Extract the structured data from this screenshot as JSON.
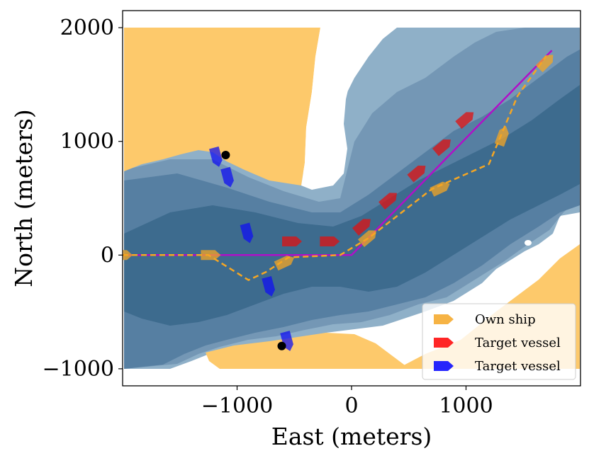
{
  "chart_data": {
    "type": "scatter",
    "xlabel": "East (meters)",
    "ylabel": "North (meters)",
    "xlim": [
      -2000,
      2000
    ],
    "ylim": [
      -1150,
      2150
    ],
    "x_ticks": [
      -1000,
      0,
      1000
    ],
    "y_ticks": [
      -1000,
      0,
      1000,
      2000
    ],
    "x_tick_labels": [
      "−1000",
      "0",
      "1000"
    ],
    "y_tick_labels": [
      "−1000",
      "0",
      "1000",
      "2000"
    ],
    "legend_position": "lower-right",
    "legend": [
      {
        "label": "Own ship",
        "color": "#f5a623"
      },
      {
        "label": "Target vessel",
        "color": "#ff0000"
      },
      {
        "label": "Target vessel",
        "color": "#0000ff"
      }
    ],
    "colors": {
      "land": "#fdc96b",
      "deep_water": "#3d6b8e",
      "mid_water": "#567fa2",
      "shallow_water": "#7497b5",
      "shoal_water": "#8fb0c8",
      "planned_path": "#b010c8",
      "own_ship": "#f5a623",
      "target_red": "#e01010",
      "target_blue": "#1010f0"
    },
    "series": [
      {
        "name": "Own ship",
        "style": "dashed",
        "points": [
          [
            -2000,
            0
          ],
          [
            -1250,
            0
          ],
          [
            -900,
            -220
          ],
          [
            -750,
            -150
          ],
          [
            -550,
            -20
          ],
          [
            -100,
            0
          ],
          [
            150,
            150
          ],
          [
            700,
            580
          ],
          [
            1200,
            800
          ],
          [
            1450,
            1400
          ],
          [
            1700,
            1750
          ]
        ]
      },
      {
        "name": "Planned path",
        "style": "solid",
        "points": [
          [
            -2000,
            0
          ],
          [
            0,
            0
          ],
          [
            1750,
            1800
          ]
        ]
      }
    ],
    "own_ship_markers": [
      {
        "x": -2000,
        "y": 0,
        "heading": 90
      },
      {
        "x": -1230,
        "y": 0,
        "heading": 90
      },
      {
        "x": -580,
        "y": -60,
        "heading": 65
      },
      {
        "x": 150,
        "y": 160,
        "heading": 50
      },
      {
        "x": 780,
        "y": 590,
        "heading": 65
      },
      {
        "x": 1320,
        "y": 1050,
        "heading": 20
      },
      {
        "x": 1700,
        "y": 1700,
        "heading": 45
      }
    ],
    "red_target_markers": [
      {
        "x": 1000,
        "y": 1200,
        "heading": 50
      },
      {
        "x": 800,
        "y": 960,
        "heading": 50
      },
      {
        "x": 580,
        "y": 730,
        "heading": 50
      },
      {
        "x": 330,
        "y": 490,
        "heading": 50
      },
      {
        "x": 100,
        "y": 260,
        "heading": 50
      },
      {
        "x": -190,
        "y": 120,
        "heading": 90
      },
      {
        "x": -520,
        "y": 120,
        "heading": 90
      }
    ],
    "blue_target_markers": [
      {
        "x": -1180,
        "y": 860,
        "heading": 165
      },
      {
        "x": -1080,
        "y": 680,
        "heading": 165
      },
      {
        "x": -910,
        "y": 190,
        "heading": 165
      },
      {
        "x": -720,
        "y": -280,
        "heading": 165
      },
      {
        "x": -560,
        "y": -760,
        "heading": 165
      }
    ],
    "start_points": [
      {
        "x": -1100,
        "y": 880
      },
      {
        "x": -610,
        "y": -800
      }
    ]
  }
}
